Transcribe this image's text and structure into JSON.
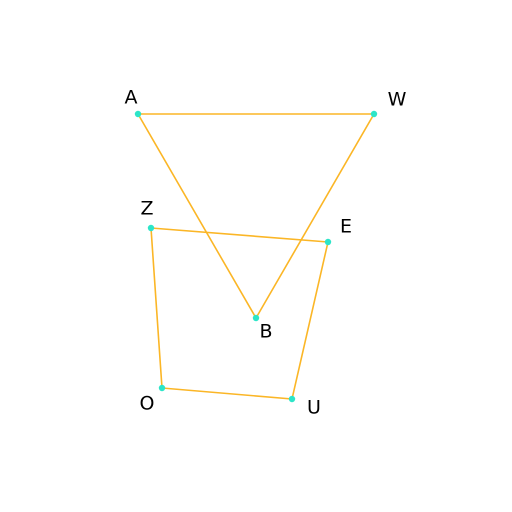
{
  "colors": {
    "edge": "#fbb626",
    "vertex": "#2de5c8",
    "label": "#000000",
    "background": "#ffffff"
  },
  "points": {
    "A": {
      "label": "A"
    },
    "W": {
      "label": "W"
    },
    "B": {
      "label": "B"
    },
    "Z": {
      "label": "Z"
    },
    "E": {
      "label": "E"
    },
    "O": {
      "label": "O"
    },
    "U": {
      "label": "U"
    }
  },
  "polygons": [
    {
      "name": "triangle",
      "vertices": [
        "A",
        "W",
        "B"
      ]
    },
    {
      "name": "quadrilateral",
      "vertices": [
        "Z",
        "E",
        "U",
        "O"
      ]
    }
  ]
}
